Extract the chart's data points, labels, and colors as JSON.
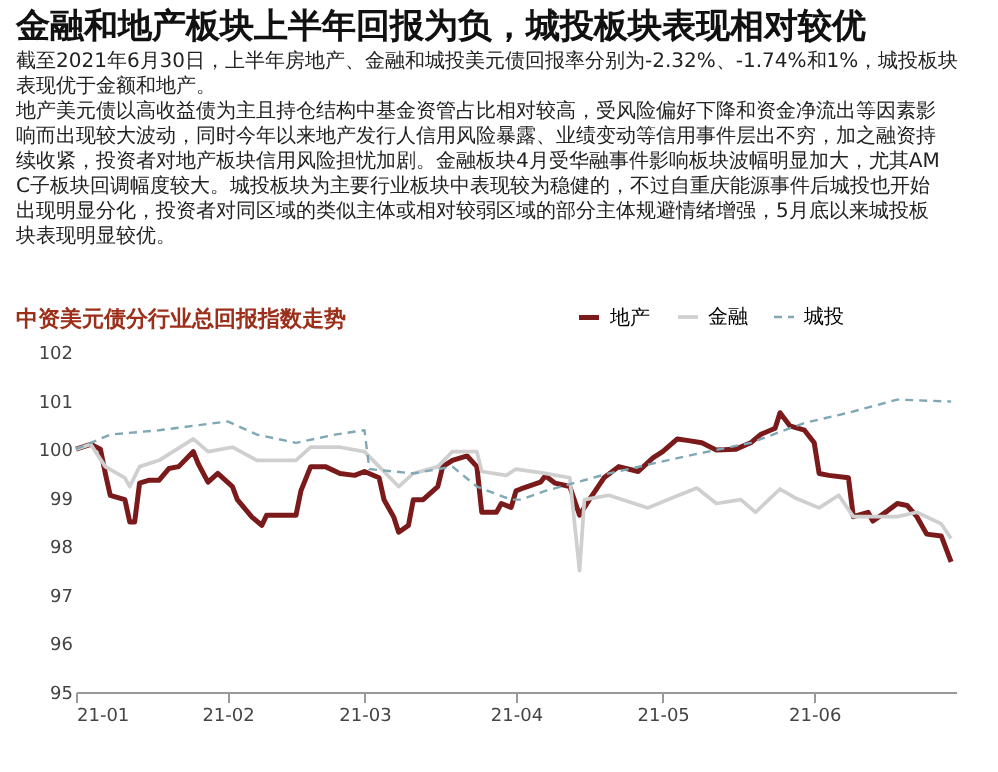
{
  "chart_data": {
    "type": "line",
    "title": "金融和地产板块上半年回报为负，城投板块表现相对较优",
    "subtitle": "中资美元债分行业总回报指数走势",
    "annotations": [
      "截至2021年6月30日，上半年房地产、金融和城投美元债回报率分别为-2.32%、-1.74%和1%，城投板块表现优于金额和地产。",
      "地产美元债以高收益债为主且持仓结构中基金资管占比相对较高，受风险偏好下降和资金净流出等因素影响而出现较大波动，同时今年以来地产发行人信用风险暴露、业绩变动等信用事件层出不穷，加之融资持续收紧，投资者对地产板块信用风险担忧加剧。金融板块4月受华融事件影响板块波幅明显加大，尤其AMC子板块回调幅度较大。城投板块为主要行业板块中表现较为稳健的，不过自重庆能源事件后城投也开始出现明显分化，投资者对同区域的类似主体或相对较弱区域的部分主体规避情绪增强，5月底以来城投板块表现明显较优。"
    ],
    "xlim": [
      "2021-01-01",
      "2021-06-30"
    ],
    "xticks": [
      {
        "value": "2021-01-01",
        "label": "21-01"
      },
      {
        "value": "2021-02-01",
        "label": "21-02"
      },
      {
        "value": "2021-03-01",
        "label": "21-03"
      },
      {
        "value": "2021-04-01",
        "label": "21-04"
      },
      {
        "value": "2021-05-01",
        "label": "21-05"
      },
      {
        "value": "2021-06-01",
        "label": "21-06"
      }
    ],
    "ylim": [
      95,
      102
    ],
    "yticks": [
      95,
      96,
      97,
      98,
      99,
      100,
      101,
      102
    ],
    "grid": false,
    "legend": "top right",
    "marker": "none",
    "series": [
      {
        "name": "地产",
        "color": "#7b1a1a",
        "line_style": "solid",
        "x": [
          "2021-01-01",
          "2021-01-04",
          "2021-01-06",
          "2021-01-07",
          "2021-01-08",
          "2021-01-11",
          "2021-01-12",
          "2021-01-13",
          "2021-01-14",
          "2021-01-16",
          "2021-01-18",
          "2021-01-20",
          "2021-01-22",
          "2021-01-25",
          "2021-01-26",
          "2021-01-28",
          "2021-01-30",
          "2021-02-02",
          "2021-02-03",
          "2021-02-06",
          "2021-02-08",
          "2021-02-09",
          "2021-02-11",
          "2021-02-15",
          "2021-02-16",
          "2021-02-18",
          "2021-02-21",
          "2021-02-24",
          "2021-02-27",
          "2021-03-01",
          "2021-03-04",
          "2021-03-05",
          "2021-03-07",
          "2021-03-08",
          "2021-03-10",
          "2021-03-11",
          "2021-03-13",
          "2021-03-16",
          "2021-03-17",
          "2021-03-19",
          "2021-03-22",
          "2021-03-24",
          "2021-03-25",
          "2021-03-28",
          "2021-03-29",
          "2021-03-31",
          "2021-04-01",
          "2021-04-02",
          "2021-04-06",
          "2021-04-07",
          "2021-04-09",
          "2021-04-12",
          "2021-04-14",
          "2021-04-16",
          "2021-04-19",
          "2021-04-22",
          "2021-04-26",
          "2021-04-29",
          "2021-05-01",
          "2021-05-04",
          "2021-05-06",
          "2021-05-09",
          "2021-05-12",
          "2021-05-16",
          "2021-05-19",
          "2021-05-21",
          "2021-05-24",
          "2021-05-25",
          "2021-05-27",
          "2021-05-30",
          "2021-06-01",
          "2021-06-02",
          "2021-06-04",
          "2021-06-08",
          "2021-06-09",
          "2021-06-12",
          "2021-06-13",
          "2021-06-16",
          "2021-06-18",
          "2021-06-20",
          "2021-06-22",
          "2021-06-24",
          "2021-06-27",
          "2021-06-29"
        ],
        "values": [
          100.0,
          100.1,
          100.0,
          99.5,
          99.05,
          98.96,
          98.5,
          98.5,
          99.3,
          99.36,
          99.36,
          99.6,
          99.64,
          99.95,
          99.7,
          99.32,
          99.5,
          99.23,
          98.96,
          98.6,
          98.43,
          98.64,
          98.64,
          98.64,
          99.14,
          99.64,
          99.64,
          99.5,
          99.46,
          99.54,
          99.41,
          98.96,
          98.6,
          98.29,
          98.43,
          98.96,
          98.96,
          99.23,
          99.64,
          99.77,
          99.86,
          99.64,
          98.7,
          98.7,
          98.88,
          98.8,
          99.14,
          99.18,
          99.32,
          99.45,
          99.3,
          99.23,
          98.64,
          98.96,
          99.41,
          99.64,
          99.54,
          99.82,
          99.95,
          100.21,
          100.18,
          100.13,
          99.98,
          100.0,
          100.13,
          100.3,
          100.43,
          100.75,
          100.48,
          100.39,
          100.13,
          99.5,
          99.46,
          99.41,
          98.61,
          98.7,
          98.52,
          98.73,
          98.88,
          98.84,
          98.61,
          98.25,
          98.21,
          97.68
        ]
      },
      {
        "name": "金融",
        "color": "#cfcfcf",
        "line_style": "solid",
        "x": [
          "2021-01-01",
          "2021-01-04",
          "2021-01-07",
          "2021-01-11",
          "2021-01-12",
          "2021-01-14",
          "2021-01-18",
          "2021-01-25",
          "2021-01-28",
          "2021-02-02",
          "2021-02-07",
          "2021-02-15",
          "2021-02-18",
          "2021-02-24",
          "2021-03-01",
          "2021-03-04",
          "2021-03-08",
          "2021-03-11",
          "2021-03-16",
          "2021-03-19",
          "2021-03-24",
          "2021-03-25",
          "2021-03-30",
          "2021-04-01",
          "2021-04-07",
          "2021-04-12",
          "2021-04-14",
          "2021-04-15",
          "2021-04-20",
          "2021-04-28",
          "2021-05-03",
          "2021-05-08",
          "2021-05-12",
          "2021-05-17",
          "2021-05-20",
          "2021-05-25",
          "2021-05-28",
          "2021-06-02",
          "2021-06-06",
          "2021-06-09",
          "2021-06-18",
          "2021-06-22",
          "2021-06-27",
          "2021-06-29"
        ],
        "values": [
          100.0,
          100.1,
          99.64,
          99.41,
          99.23,
          99.64,
          99.77,
          100.21,
          99.95,
          100.04,
          99.77,
          99.77,
          100.04,
          100.04,
          99.95,
          99.64,
          99.23,
          99.5,
          99.64,
          99.95,
          99.95,
          99.54,
          99.46,
          99.59,
          99.5,
          99.41,
          97.5,
          98.96,
          99.05,
          98.79,
          99.0,
          99.2,
          98.88,
          98.96,
          98.7,
          99.18,
          99.0,
          98.79,
          99.05,
          98.61,
          98.61,
          98.7,
          98.46,
          98.16
        ]
      },
      {
        "name": "城投",
        "color": "#7fa7b5",
        "line_style": "dashed",
        "x": [
          "2021-01-01",
          "2021-01-08",
          "2021-01-18",
          "2021-02-01",
          "2021-02-07",
          "2021-02-15",
          "2021-02-23",
          "2021-03-01",
          "2021-03-02",
          "2021-03-11",
          "2021-03-19",
          "2021-03-24",
          "2021-03-31",
          "2021-04-02",
          "2021-04-07",
          "2021-04-20",
          "2021-05-06",
          "2021-05-19",
          "2021-05-30",
          "2021-06-08",
          "2021-06-18",
          "2021-06-29"
        ],
        "values": [
          100.0,
          100.3,
          100.39,
          100.57,
          100.3,
          100.13,
          100.3,
          100.39,
          99.59,
          99.5,
          99.64,
          99.23,
          98.96,
          98.96,
          99.14,
          99.5,
          99.86,
          100.13,
          100.54,
          100.75,
          101.02,
          100.98
        ]
      }
    ]
  }
}
